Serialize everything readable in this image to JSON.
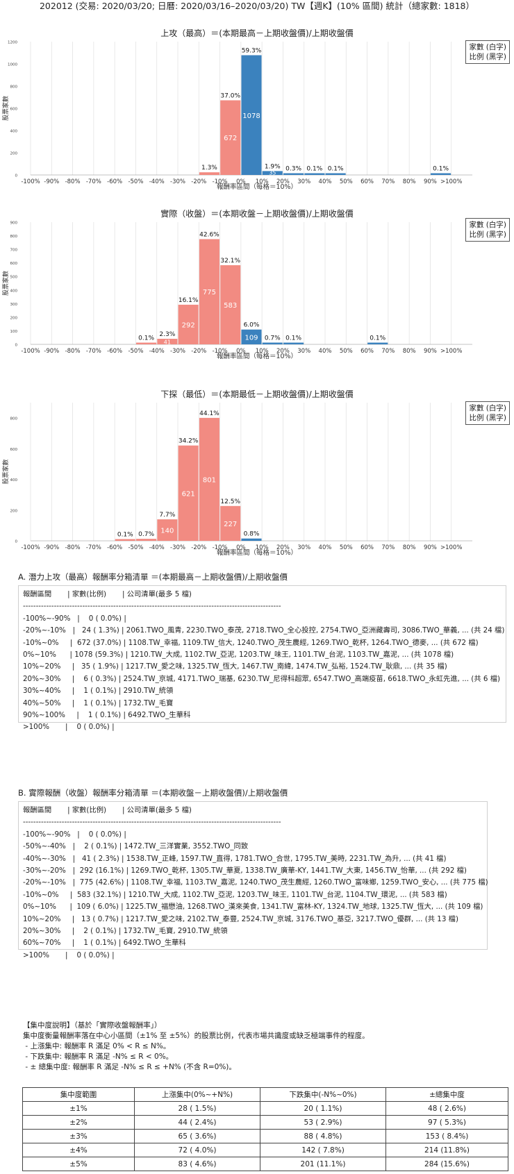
{
  "page_title": "202012 (交易: 2020/03/20; 日曆: 2020/03/16–2020/03/20) TW【週K】(10% 區間) 統計（總家數: 1818）",
  "legend": {
    "line1": "家數 (白字)",
    "line2": "比例 (黑字)"
  },
  "colors": {
    "positive": "#3b82be",
    "negative": "#f28b82",
    "grid": "#e3e3e3"
  },
  "chart_data": [
    {
      "type": "bar",
      "title": "上攻（最高）＝(本期最高－上期收盤價)/上期收盤價",
      "xlabel": "報酬率區間（每格＝10%）",
      "ylabel": "股票家數",
      "categories": [
        "-100%",
        "-90%",
        "-80%",
        "-70%",
        "-60%",
        "-50%",
        "-40%",
        "-30%",
        "-20%",
        "-10%",
        "0%",
        "10%",
        "20%",
        "30%",
        "40%",
        "50%",
        "60%",
        "70%",
        "80%",
        "90%",
        ">100%"
      ],
      "bins": [
        {
          "x": -0.25,
          "count": 0,
          "pct": ""
        },
        {
          "x": -0.15,
          "count": 24,
          "pct": "1.3%"
        },
        {
          "x": -0.05,
          "count": 672,
          "pct": "37.0%"
        },
        {
          "x": 0.05,
          "count": 1078,
          "pct": "59.3%"
        },
        {
          "x": 0.15,
          "count": 35,
          "pct": "1.9%"
        },
        {
          "x": 0.25,
          "count": 6,
          "pct": "0.3%"
        },
        {
          "x": 0.35,
          "count": 1,
          "pct": "0.1%"
        },
        {
          "x": 0.45,
          "count": 1,
          "pct": "0.1%"
        },
        {
          "x": 0.95,
          "count": 1,
          "pct": "0.1%"
        }
      ],
      "ylim": [
        0,
        1200
      ],
      "yticks": [
        0,
        200,
        400,
        600,
        800,
        1000,
        1200
      ]
    },
    {
      "type": "bar",
      "title": "實際（收盤）＝(本期收盤－上期收盤價)/上期收盤價",
      "xlabel": "報酬率區間（每格＝10%）",
      "ylabel": "股票家數",
      "categories": [
        "-100%",
        "-90%",
        "-80%",
        "-70%",
        "-60%",
        "-50%",
        "-40%",
        "-30%",
        "-20%",
        "-10%",
        "0%",
        "10%",
        "20%",
        "30%",
        "40%",
        "50%",
        "60%",
        "70%",
        "80%",
        "90%",
        ">100%"
      ],
      "bins": [
        {
          "x": -0.45,
          "count": 2,
          "pct": "0.1%"
        },
        {
          "x": -0.35,
          "count": 41,
          "pct": "2.3%"
        },
        {
          "x": -0.25,
          "count": 292,
          "pct": "16.1%"
        },
        {
          "x": -0.15,
          "count": 775,
          "pct": "42.6%"
        },
        {
          "x": -0.05,
          "count": 583,
          "pct": "32.1%"
        },
        {
          "x": 0.05,
          "count": 109,
          "pct": "6.0%"
        },
        {
          "x": 0.15,
          "count": 13,
          "pct": "0.7%"
        },
        {
          "x": 0.25,
          "count": 2,
          "pct": "0.1%"
        },
        {
          "x": 0.65,
          "count": 1,
          "pct": "0.1%"
        }
      ],
      "ylim": [
        0,
        900
      ],
      "yticks": [
        0,
        100,
        200,
        300,
        400,
        500,
        600,
        700,
        800,
        900
      ]
    },
    {
      "type": "bar",
      "title": "下探（最低）＝(本期最低－上期收盤價)/上期收盤價",
      "xlabel": "報酬率區間（每格＝10%）",
      "ylabel": "股票家數",
      "categories": [
        "-100%",
        "-90%",
        "-80%",
        "-70%",
        "-60%",
        "-50%",
        "-40%",
        "-30%",
        "-20%",
        "-10%",
        "0%",
        "10%",
        "20%",
        "30%",
        "40%",
        "50%",
        "60%",
        "70%",
        "80%",
        "90%",
        ">100%"
      ],
      "bins": [
        {
          "x": -0.55,
          "count": 1,
          "pct": "0.1%"
        },
        {
          "x": -0.45,
          "count": 13,
          "pct": "0.7%"
        },
        {
          "x": -0.35,
          "count": 140,
          "pct": "7.7%"
        },
        {
          "x": -0.25,
          "count": 621,
          "pct": "34.2%"
        },
        {
          "x": -0.15,
          "count": 801,
          "pct": "44.1%"
        },
        {
          "x": -0.05,
          "count": 227,
          "pct": "12.5%"
        },
        {
          "x": 0.05,
          "count": 15,
          "pct": "0.8%"
        }
      ],
      "ylim": [
        0,
        900
      ],
      "yticks": [
        0,
        200,
        400,
        600,
        800
      ]
    }
  ],
  "section_a": {
    "title": "A. 潛力上攻（最高）報酬率分箱清單 ＝(本期最高－上期收盤價)/上期收盤價",
    "header": "報酬區間       | 家數(比例)       | 公司清單(最多 5 檔)",
    "separator": "----------------------------------------------------------------------------------------------------",
    "rows": [
      "-100%~-90%   |    0 ( 0.0%) |",
      "-20%~-10%   |   24 ( 1.3%) | 2061.TWO_風青, 2230.TWO_泰茂, 2718.TWO_全心投控, 2754.TWO_亞洲藏壽司, 3086.TWO_華義, ... (共 24 檔)",
      "-10%~0%     |  672 (37.0%) | 1108.TW_幸福, 1109.TW_信大, 1240.TWO_茂生農經, 1269.TWO_乾杯, 1264.TWO_德麥, ... (共 672 檔)",
      "0%~10%      | 1078 (59.3%) | 1210.TW_大成, 1102.TW_亞泥, 1203.TW_味王, 1101.TW_台泥, 1103.TW_嘉泥, ... (共 1078 檔)",
      "10%~20%     |   35 ( 1.9%) | 1217.TW_愛之味, 1325.TW_恆大, 1467.TW_南緯, 1474.TW_弘裕, 1524.TW_耿鼎, ... (共 35 檔)",
      "20%~30%     |    6 ( 0.3%) | 2524.TW_京城, 4171.TWO_瑞基, 6230.TW_尼得科超眾, 6547.TWO_高端疫苗, 6618.TWO_永虹先進, ... (共 6 檔)",
      "30%~40%     |    1 ( 0.1%) | 2910.TW_統領",
      "40%~50%     |    1 ( 0.1%) | 1732.TW_毛寶",
      "90%~100%     |    1 ( 0.1%) | 6492.TWO_生華科",
      ">100%       |    0 ( 0.0%) |"
    ]
  },
  "section_b": {
    "title": "B. 實際報酬（收盤）報酬率分箱清單 ＝(本期收盤－上期收盤價)/上期收盤價",
    "header": "報酬區間       | 家數(比例)       | 公司清單(最多 5 檔)",
    "separator": "----------------------------------------------------------------------------------------------------",
    "rows": [
      "-100%~-90%   |    0 ( 0.0%) |",
      "-50%~-40%   |    2 ( 0.1%) | 1472.TW_三洋實業, 3552.TWO_同致",
      "-40%~-30%   |   41 ( 2.3%) | 1538.TW_正峰, 1597.TW_直得, 1781.TWO_合世, 1795.TW_美時, 2231.TW_為升, ... (共 41 檔)",
      "-30%~-20%   |  292 (16.1%) | 1269.TWO_乾杯, 1305.TW_華夏, 1338.TW_廣華-KY, 1441.TW_大東, 1456.TW_怡華, ... (共 292 檔)",
      "-20%~-10%   |  775 (42.6%) | 1108.TW_幸福, 1103.TW_嘉泥, 1240.TWO_茂生農經, 1260.TWO_富味鄉, 1259.TWO_安心, ... (共 775 檔)",
      "-10%~0%     |  583 (32.1%) | 1210.TW_大成, 1102.TW_亞泥, 1203.TW_味王, 1101.TW_台泥, 1104.TW_環泥, ... (共 583 檔)",
      "0%~10%      |  109 ( 6.0%) | 1225.TW_福懋油, 1268.TWO_漢來美食, 1341.TW_富林-KY, 1324.TW_地球, 1325.TW_恆大, ... (共 109 檔)",
      "10%~20%     |   13 ( 0.7%) | 1217.TW_愛之味, 2102.TW_泰豐, 2524.TW_京城, 3176.TWO_基亞, 3217.TWO_優群, ... (共 13 檔)",
      "20%~30%     |    2 ( 0.1%) | 1732.TW_毛寶, 2910.TW_統領",
      "60%~70%     |    1 ( 0.1%) | 6492.TWO_生華科",
      ">100%       |    0 ( 0.0%) |"
    ]
  },
  "notes": {
    "title": "【集中度說明】（基於「實際收盤報酬率」）",
    "desc": "集中度衡量報酬率落在中心小區間（±1% 至 ±5%）的股票比例，代表市場共識度或缺乏極端事件的程度。",
    "up": " - 上漲集中: 報酬率 R 滿足 0% < R ≤ N%。",
    "down": " - 下跌集中: 報酬率 R 滿足 -N% ≤ R < 0%。",
    "both": " - ± 總集中度: 報酬率 R 滿足 -N% ≤ R ≤ +N% (不含 R=0%)。"
  },
  "concentration": {
    "headers": [
      "集中度範圍",
      "上漲集中(0%~+N%)",
      "下跌集中(-N%~0%)",
      "±總集中度"
    ],
    "rows": [
      [
        "±1%",
        "28 ( 1.5%)",
        "20 ( 1.1%)",
        "48 ( 2.6%)"
      ],
      [
        "±2%",
        "44 ( 2.4%)",
        "53 ( 2.9%)",
        "97 ( 5.3%)"
      ],
      [
        "±3%",
        "65 ( 3.6%)",
        "88 ( 4.8%)",
        "153 ( 8.4%)"
      ],
      [
        "±4%",
        "72 ( 4.0%)",
        "142 ( 7.8%)",
        "214 (11.8%)"
      ],
      [
        "±5%",
        "83 ( 4.6%)",
        "201 (11.1%)",
        "284 (15.6%)"
      ]
    ]
  }
}
